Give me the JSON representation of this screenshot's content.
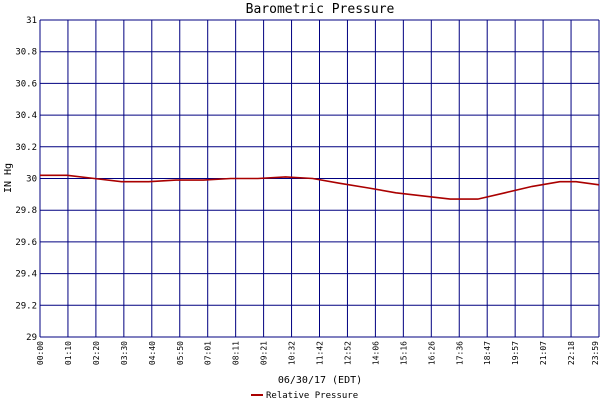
{
  "chart_data": {
    "type": "line",
    "title": "Barometric Pressure",
    "xlabel": "06/30/17 (EDT)",
    "ylabel": "IN Hg",
    "ylim": [
      29,
      31
    ],
    "yticks": [
      "29",
      "29.2",
      "29.4",
      "29.6",
      "29.8",
      "30",
      "30.2",
      "30.4",
      "30.6",
      "30.8",
      "31"
    ],
    "xtick_labels": [
      "00:00",
      "01:10",
      "02:20",
      "03:30",
      "04:40",
      "05:50",
      "07:01",
      "08:11",
      "09:21",
      "10:32",
      "11:42",
      "12:52",
      "14:06",
      "15:16",
      "16:26",
      "17:36",
      "18:47",
      "19:57",
      "21:07",
      "22:18",
      "23:59"
    ],
    "grid": true,
    "legend_position": "bottom-center",
    "series": [
      {
        "name": "Relative Pressure",
        "color": "#aa0000",
        "x": [
          "00:00",
          "01:10",
          "02:20",
          "03:30",
          "04:40",
          "05:50",
          "07:01",
          "08:11",
          "09:21",
          "10:32",
          "11:42",
          "12:52",
          "14:06",
          "15:16",
          "16:26",
          "17:36",
          "18:47",
          "19:57",
          "21:07",
          "22:18",
          "23:00",
          "23:59"
        ],
        "values": [
          30.02,
          30.02,
          30.0,
          29.98,
          29.98,
          29.99,
          29.99,
          30.0,
          30.0,
          30.01,
          30.0,
          29.97,
          29.94,
          29.91,
          29.89,
          29.87,
          29.87,
          29.91,
          29.95,
          29.98,
          29.98,
          29.96
        ]
      }
    ]
  },
  "colors": {
    "grid": "#000080",
    "axis_text": "#000000"
  }
}
